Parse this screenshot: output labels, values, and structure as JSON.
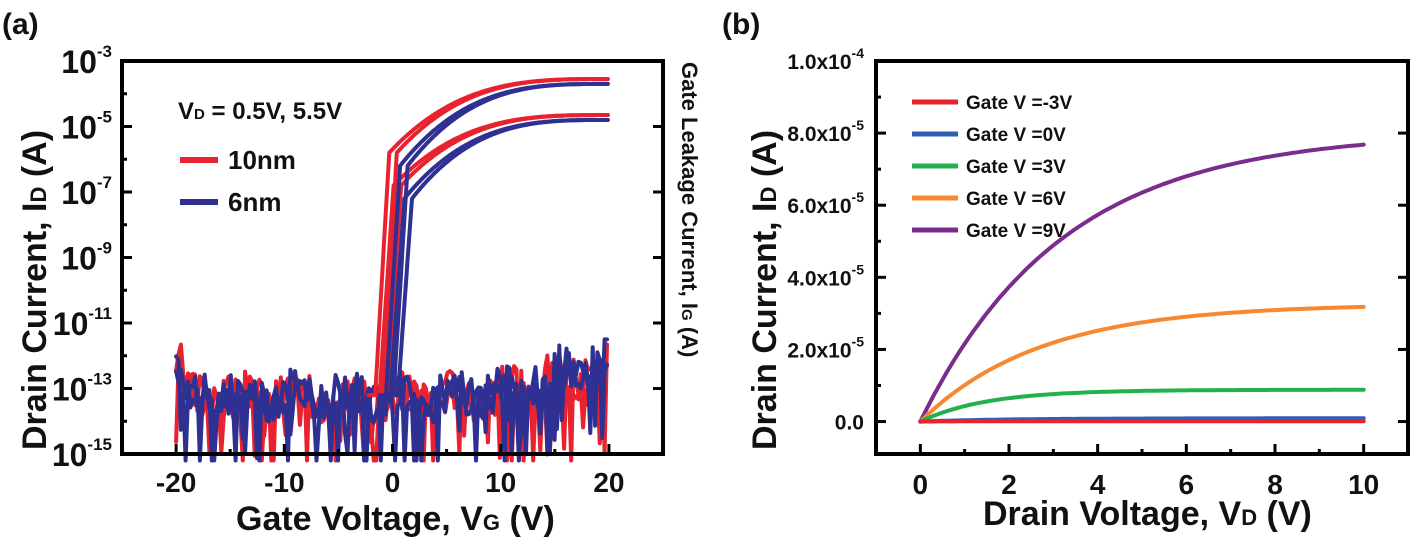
{
  "panels": {
    "a": {
      "label": "(a)",
      "ylabel_main": "Drain Current, I",
      "ylabel_sub": "D",
      "ylabel_unit": " (A)",
      "y2label_main": "Gate Leakage Current, I",
      "y2label_sub": "G",
      "y2label_unit": " (A)",
      "xlabel_main": "Gate Voltage, V",
      "xlabel_sub": "G",
      "xlabel_unit": " (V)",
      "annotation_main": "V",
      "annotation_sub": "D",
      "annotation_rest": " = 0.5V, 5.5V"
    },
    "b": {
      "label": "(b)",
      "ylabel_main": "Drain Current, I",
      "ylabel_sub": "D",
      "ylabel_unit": " (A)",
      "xlabel_main": "Drain Voltage, V",
      "xlabel_sub": "D",
      "xlabel_unit": " (V)"
    }
  },
  "chart_data": [
    {
      "id": "a",
      "type": "line",
      "title": "",
      "xlabel": "Gate Voltage, VG (V)",
      "ylabel": "Drain Current, ID (A)",
      "y2label": "Gate Leakage Current, IG (A)",
      "yscale": "log",
      "xlim": [
        -25,
        25
      ],
      "ylim_exp": [
        -15,
        -3
      ],
      "xticks": [
        "-20",
        "-10",
        "0",
        "10",
        "20"
      ],
      "xtick_values": [
        -20,
        -10,
        0,
        10,
        20
      ],
      "yticks": [
        {
          "base": "10",
          "exp": "-3",
          "value": -3
        },
        {
          "base": "10",
          "exp": "-5",
          "value": -5
        },
        {
          "base": "10",
          "exp": "-7",
          "value": -7
        },
        {
          "base": "10",
          "exp": "-9",
          "value": -9
        },
        {
          "base": "10",
          "exp": "-11",
          "value": -11
        },
        {
          "base": "10",
          "exp": "-13",
          "value": -13
        },
        {
          "base": "10",
          "exp": "-15",
          "value": -15
        }
      ],
      "legend": [
        {
          "name": "10nm",
          "color": "#e8232f"
        },
        {
          "name": "6nm",
          "color": "#2e3192"
        }
      ],
      "legend_position": "top-left",
      "series": [
        {
          "name": "10nm VD=5.5V",
          "color": "#e8232f",
          "kind": "transfer",
          "vth": -1.6,
          "on_exp": -3.55,
          "knee": -5.8
        },
        {
          "name": "10nm VD=0.5V",
          "color": "#e8232f",
          "kind": "transfer",
          "vth": -1.2,
          "on_exp": -4.65,
          "knee": -6.8
        },
        {
          "name": "6nm VD=5.5V",
          "color": "#2e3192",
          "kind": "transfer",
          "vth": -0.6,
          "on_exp": -3.7,
          "knee": -6.2
        },
        {
          "name": "6nm VD=0.5V",
          "color": "#2e3192",
          "kind": "transfer",
          "vth": -0.2,
          "on_exp": -4.8,
          "knee": -7.2
        },
        {
          "name": "10nm IG",
          "color": "#e8232f",
          "kind": "leakage",
          "seed": 3,
          "end_exp": -12.6
        },
        {
          "name": "6nm IG",
          "color": "#2e3192",
          "kind": "leakage",
          "seed": 7,
          "end_exp": -12.3
        }
      ]
    },
    {
      "id": "b",
      "type": "line",
      "title": "",
      "xlabel": "Drain Voltage, VD (V)",
      "ylabel": "Drain Current, ID (A)",
      "xlim": [
        -1,
        11
      ],
      "ylim": [
        -9e-06,
        0.0001
      ],
      "xticks": [
        "0",
        "2",
        "4",
        "6",
        "8",
        "10"
      ],
      "xtick_values": [
        0,
        2,
        4,
        6,
        8,
        10
      ],
      "yticks": [
        {
          "base": "1.0x10",
          "exp": "-4",
          "value": 0.0001
        },
        {
          "base": "8.0x10",
          "exp": "-5",
          "value": 8e-05
        },
        {
          "base": "6.0x10",
          "exp": "-5",
          "value": 6e-05
        },
        {
          "base": "4.0x10",
          "exp": "-5",
          "value": 4e-05
        },
        {
          "base": "2.0x10",
          "exp": "-5",
          "value": 2e-05
        },
        {
          "base": "0.0",
          "exp": "",
          "value": 0
        }
      ],
      "legend_position": "top-left",
      "series": [
        {
          "name": "Gate V =-3V",
          "color": "#e8232f",
          "sat": 1e-07,
          "vk": 1.0
        },
        {
          "name": "Gate V =0V",
          "color": "#2e5fb5",
          "sat": 9e-07,
          "vk": 2.0
        },
        {
          "name": "Gate V =3V",
          "color": "#22b14c",
          "sat": 8.8e-06,
          "vk": 1.5
        },
        {
          "name": "Gate V =6V",
          "color": "#f7882f",
          "sat": 3.18e-05,
          "vk": 2.7
        },
        {
          "name": "Gate V =9V",
          "color": "#7b2d8e",
          "sat": 7.68e-05,
          "vk": 3.2
        }
      ]
    }
  ]
}
